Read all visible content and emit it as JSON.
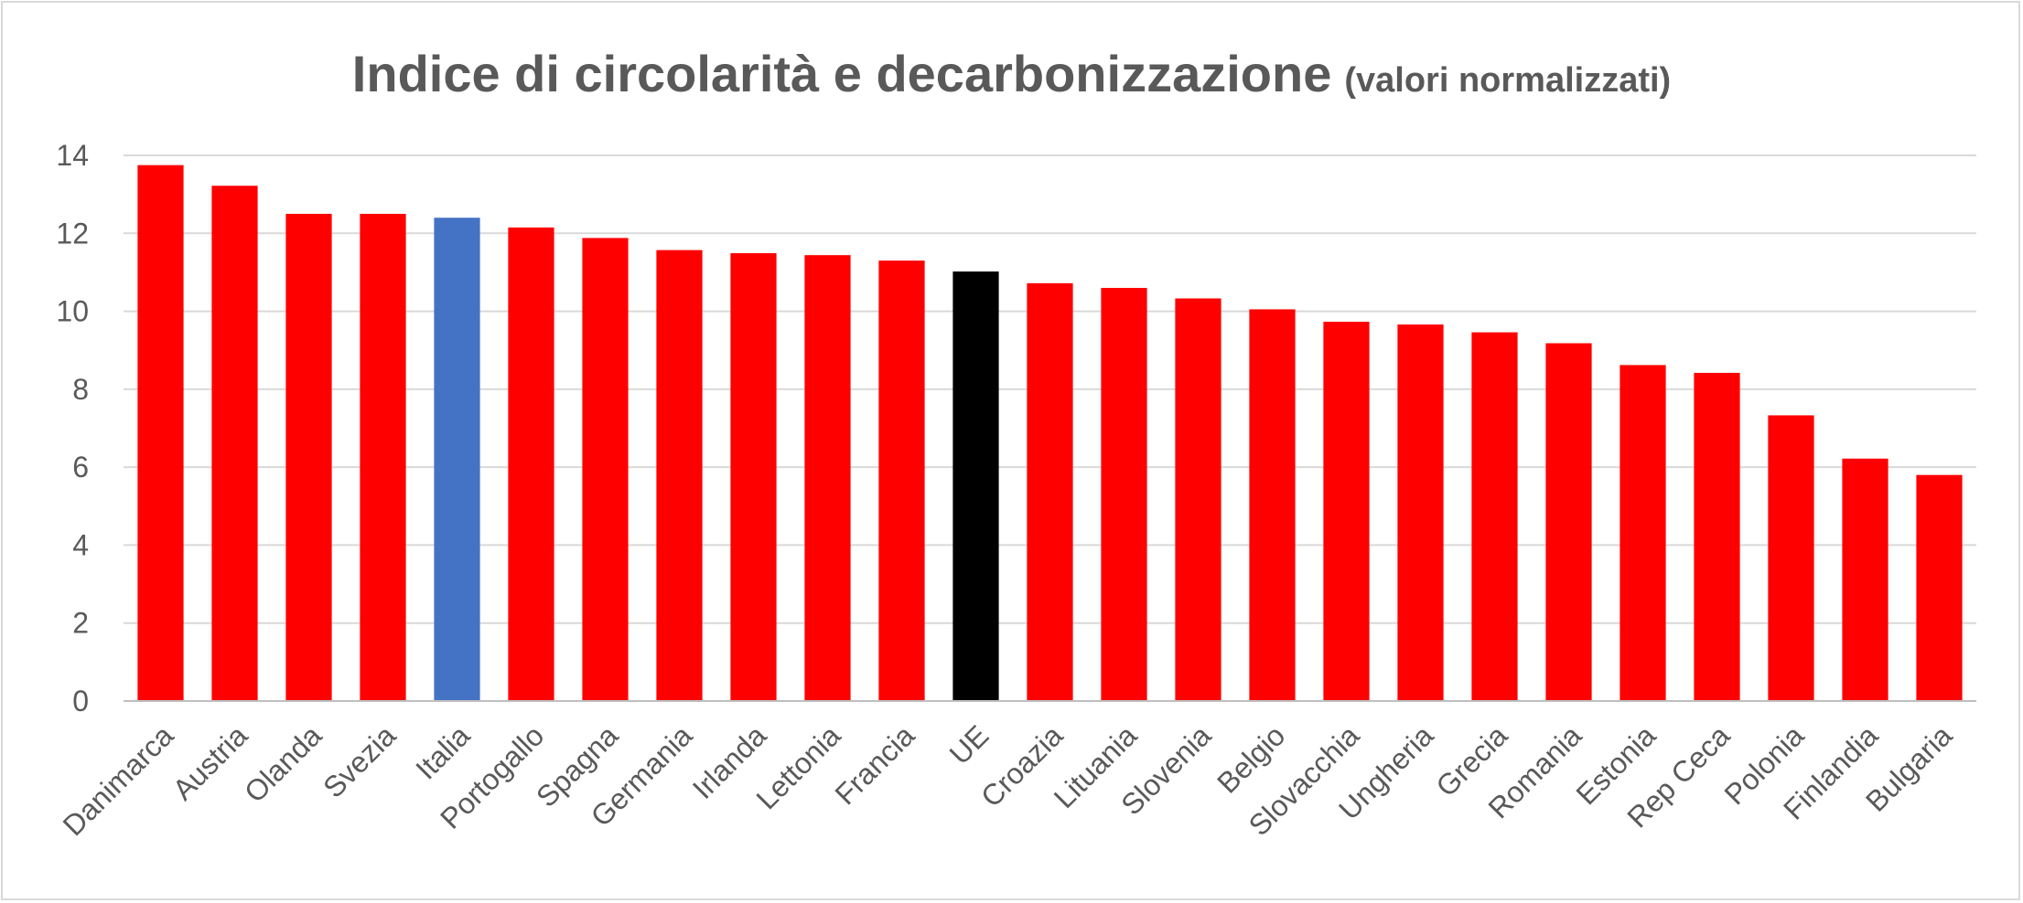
{
  "chart_data": {
    "type": "bar",
    "title": "Indice di circolarità e decarbonizzazione",
    "subtitle": "(valori normalizzati)",
    "xlabel": "",
    "ylabel": "",
    "ylim": [
      0,
      14
    ],
    "yticks": [
      0,
      2,
      4,
      6,
      8,
      10,
      12,
      14
    ],
    "grid": true,
    "legend": "none",
    "categories": [
      "Danimarca",
      "Austria",
      "Olanda",
      "Svezia",
      "Italia",
      "Portogallo",
      "Spagna",
      "Germania",
      "Irlanda",
      "Lettonia",
      "Francia",
      "UE",
      "Croazia",
      "Lituania",
      "Slovenia",
      "Belgio",
      "Slovacchia",
      "Ungheria",
      "Grecia",
      "Romania",
      "Estonia",
      "Rep Ceca",
      "Polonia",
      "Finlandia",
      "Bulgaria"
    ],
    "values": [
      13.75,
      13.22,
      12.5,
      12.5,
      12.4,
      12.15,
      11.88,
      11.57,
      11.49,
      11.44,
      11.3,
      11.02,
      10.72,
      10.6,
      10.33,
      10.05,
      9.73,
      9.66,
      9.46,
      9.18,
      8.62,
      8.42,
      7.33,
      6.22,
      5.8
    ],
    "colors": {
      "default": "#ff0000",
      "highlight": "#4472c4",
      "eu": "#000000",
      "gridline": "#d9d9d9",
      "text": "#595959"
    },
    "bar_colors": [
      "#ff0000",
      "#ff0000",
      "#ff0000",
      "#ff0000",
      "#4472c4",
      "#ff0000",
      "#ff0000",
      "#ff0000",
      "#ff0000",
      "#ff0000",
      "#ff0000",
      "#000000",
      "#ff0000",
      "#ff0000",
      "#ff0000",
      "#ff0000",
      "#ff0000",
      "#ff0000",
      "#ff0000",
      "#ff0000",
      "#ff0000",
      "#ff0000",
      "#ff0000",
      "#ff0000",
      "#ff0000"
    ]
  }
}
